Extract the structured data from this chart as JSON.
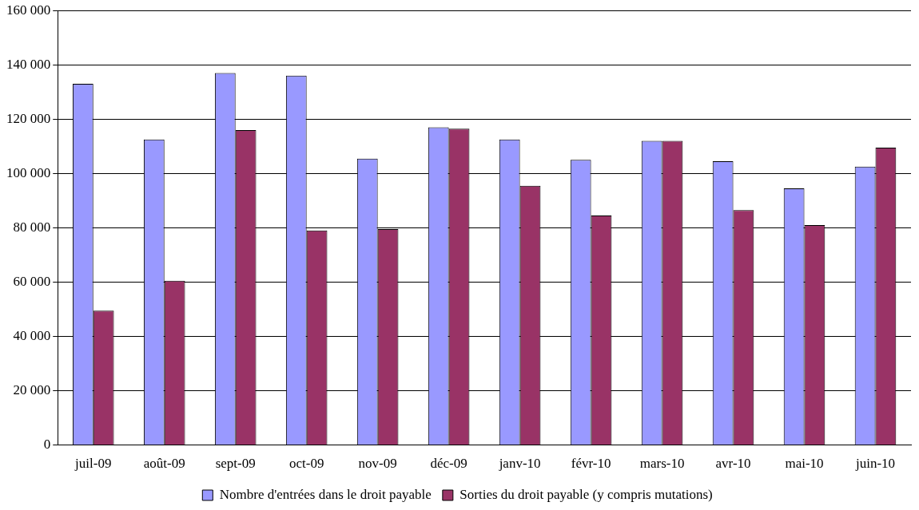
{
  "chart_data": {
    "type": "bar",
    "categories": [
      "juil-09",
      "août-09",
      "sept-09",
      "oct-09",
      "nov-09",
      "déc-09",
      "janv-10",
      "févr-10",
      "mars-10",
      "avr-10",
      "mai-10",
      "juin-10"
    ],
    "series": [
      {
        "name": "Nombre d'entrées dans le droit payable",
        "color": "#9999ff",
        "values": [
          133000,
          112500,
          137000,
          136000,
          105500,
          117000,
          112500,
          105000,
          112000,
          104500,
          94500,
          102500
        ]
      },
      {
        "name": "Sorties du droit payable (y compris mutations)",
        "color": "#993366",
        "values": [
          49500,
          60500,
          116000,
          79000,
          79500,
          116500,
          95500,
          84500,
          112000,
          86500,
          81000,
          109500
        ]
      }
    ],
    "ylim": [
      0,
      160000
    ],
    "yticks": [
      {
        "value": 0,
        "label": "0"
      },
      {
        "value": 20000,
        "label": "20 000"
      },
      {
        "value": 40000,
        "label": "40 000"
      },
      {
        "value": 60000,
        "label": "60 000"
      },
      {
        "value": 80000,
        "label": "80 000"
      },
      {
        "value": 100000,
        "label": "100 000"
      },
      {
        "value": 120000,
        "label": "120 000"
      },
      {
        "value": 140000,
        "label": "140 000"
      },
      {
        "value": 160000,
        "label": "160 000"
      }
    ],
    "grid": "y",
    "legend": "bottom"
  }
}
